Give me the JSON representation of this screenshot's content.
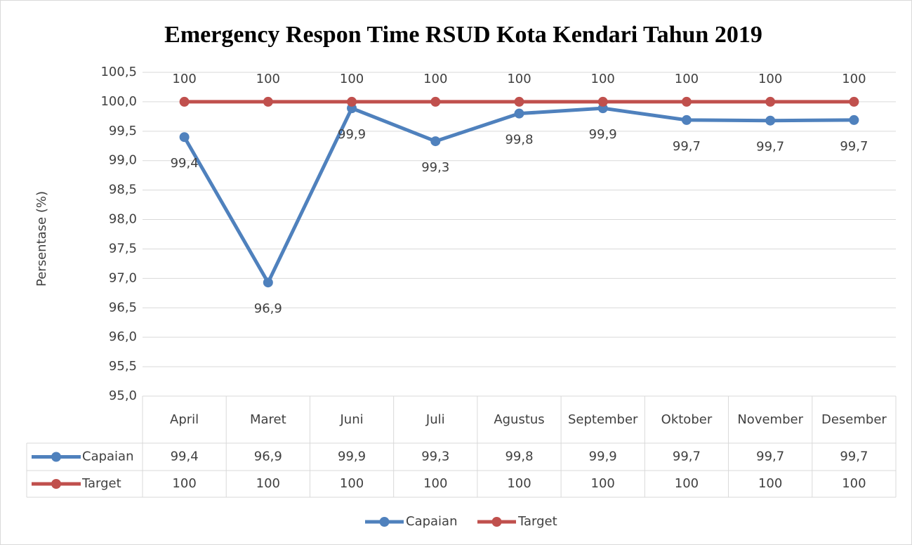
{
  "chart_data": {
    "type": "line",
    "title": "Emergency Respon Time RSUD Kota Kendari Tahun 2019",
    "ylabel": "Persentase (%)",
    "categories": [
      "April",
      "Maret",
      "Juni",
      "Juli",
      "Agustus",
      "September",
      "Oktober",
      "November",
      "Desember"
    ],
    "series": [
      {
        "name": "Capaian",
        "color": "#4f81bd",
        "values": [
          99.4,
          96.93,
          99.89,
          99.33,
          99.8,
          99.89,
          99.69,
          99.68,
          99.69
        ],
        "value_labels": [
          "99,4",
          "96,9",
          "99,9",
          "99,3",
          "99,8",
          "99,9",
          "99,7",
          "99,7",
          "99,7"
        ]
      },
      {
        "name": "Target",
        "color": "#c0504d",
        "values": [
          100,
          100,
          100,
          100,
          100,
          100,
          100,
          100,
          100
        ]
      }
    ],
    "ylim": [
      95,
      100.5
    ],
    "yticks": [
      {
        "value": 95,
        "label": "95,0"
      },
      {
        "value": 95.5,
        "label": "95,5"
      },
      {
        "value": 96,
        "label": "96,0"
      },
      {
        "value": 96.5,
        "label": "96,5"
      },
      {
        "value": 97,
        "label": "97,0"
      },
      {
        "value": 97.5,
        "label": "97,5"
      },
      {
        "value": 98,
        "label": "98,0"
      },
      {
        "value": 98.5,
        "label": "98,5"
      },
      {
        "value": 99,
        "label": "99,0"
      },
      {
        "value": 99.5,
        "label": "99,5"
      },
      {
        "value": 100,
        "label": "100,0"
      },
      {
        "value": 100.5,
        "label": "100,5"
      }
    ],
    "grid": true,
    "legend": "bottom",
    "data_table": true
  }
}
